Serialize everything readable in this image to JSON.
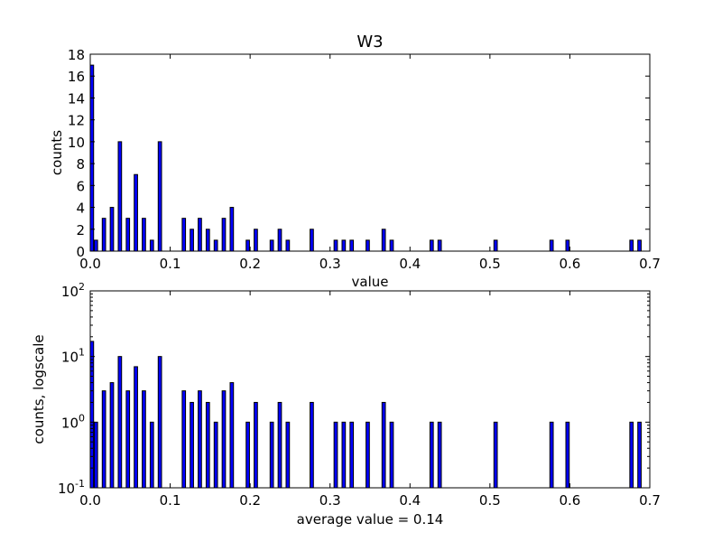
{
  "chart_data": [
    {
      "type": "bar",
      "title": "W3",
      "xlabel": "value",
      "ylabel": "counts",
      "xlim": [
        0.0,
        0.7
      ],
      "ylim": [
        0,
        18
      ],
      "yscale": "linear",
      "bar_width": 0.0042,
      "x": [
        0.0,
        0.005,
        0.015,
        0.025,
        0.035,
        0.045,
        0.055,
        0.065,
        0.075,
        0.085,
        0.115,
        0.125,
        0.135,
        0.145,
        0.155,
        0.165,
        0.175,
        0.195,
        0.205,
        0.225,
        0.235,
        0.245,
        0.275,
        0.305,
        0.315,
        0.325,
        0.345,
        0.365,
        0.375,
        0.425,
        0.435,
        0.505,
        0.575,
        0.595,
        0.675,
        0.685
      ],
      "values": [
        17,
        1,
        3,
        4,
        10,
        3,
        7,
        3,
        1,
        10,
        3,
        2,
        3,
        2,
        1,
        3,
        4,
        1,
        2,
        1,
        2,
        1,
        2,
        1,
        1,
        1,
        1,
        2,
        1,
        1,
        1,
        1,
        1,
        1,
        1,
        1
      ],
      "xticks": [
        "0.0",
        "0.1",
        "0.2",
        "0.3",
        "0.4",
        "0.5",
        "0.6",
        "0.7"
      ],
      "yticks": [
        "0",
        "2",
        "4",
        "6",
        "8",
        "10",
        "12",
        "14",
        "16",
        "18"
      ],
      "bar_color": "#0000ff"
    },
    {
      "type": "bar",
      "title": "",
      "xlabel": "average value = 0.14",
      "ylabel": "counts, logscale",
      "xlim": [
        0.0,
        0.7
      ],
      "ylim": [
        0.1,
        100
      ],
      "yscale": "log",
      "bar_width": 0.0042,
      "x": [
        0.0,
        0.005,
        0.015,
        0.025,
        0.035,
        0.045,
        0.055,
        0.065,
        0.075,
        0.085,
        0.115,
        0.125,
        0.135,
        0.145,
        0.155,
        0.165,
        0.175,
        0.195,
        0.205,
        0.225,
        0.235,
        0.245,
        0.275,
        0.305,
        0.315,
        0.325,
        0.345,
        0.365,
        0.375,
        0.425,
        0.435,
        0.505,
        0.575,
        0.595,
        0.675,
        0.685
      ],
      "values": [
        17,
        1,
        3,
        4,
        10,
        3,
        7,
        3,
        1,
        10,
        3,
        2,
        3,
        2,
        1,
        3,
        4,
        1,
        2,
        1,
        2,
        1,
        2,
        1,
        1,
        1,
        1,
        2,
        1,
        1,
        1,
        1,
        1,
        1,
        1,
        1
      ],
      "xticks": [
        "0.0",
        "0.1",
        "0.2",
        "0.3",
        "0.4",
        "0.5",
        "0.6",
        "0.7"
      ],
      "yticks": [
        {
          "base": "10",
          "exp": "-1"
        },
        {
          "base": "10",
          "exp": "0"
        },
        {
          "base": "10",
          "exp": "1"
        },
        {
          "base": "10",
          "exp": "2"
        }
      ],
      "bar_color": "#0000ff"
    }
  ]
}
